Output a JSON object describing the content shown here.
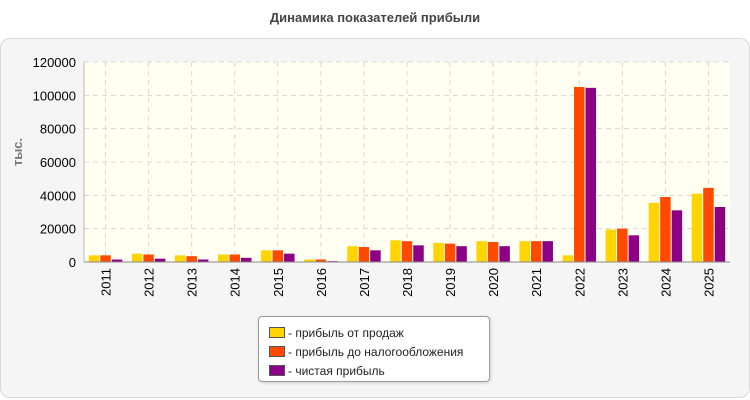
{
  "chart_data": {
    "type": "bar",
    "title": "Динамика показателей прибыли",
    "ylabel": "тыс.",
    "xlabel": "",
    "ylim": [
      0,
      120000
    ],
    "yticks": [
      0,
      20000,
      40000,
      60000,
      80000,
      100000,
      120000
    ],
    "grid": true,
    "legend_position": "bottom-center",
    "categories": [
      "2011",
      "2012",
      "2013",
      "2014",
      "2015",
      "2016",
      "2017",
      "2018",
      "2019",
      "2020",
      "2021",
      "2022",
      "2023",
      "2024",
      "2025"
    ],
    "series": [
      {
        "name": "- прибыль от продаж",
        "color": "#ffd400",
        "values": [
          4000,
          5000,
          4000,
          4500,
          7000,
          1500,
          9500,
          13000,
          11500,
          12500,
          12500,
          4000,
          19500,
          35500,
          41000
        ]
      },
      {
        "name": "- прибыль до налогообложения",
        "color": "#ff4a00",
        "values": [
          4000,
          4500,
          3500,
          4500,
          7000,
          1500,
          9000,
          12500,
          11000,
          12000,
          12500,
          105000,
          20000,
          39000,
          44500
        ]
      },
      {
        "name": "- чистая прибыль",
        "color": "#8b0085",
        "values": [
          1500,
          2000,
          1500,
          2500,
          5000,
          500,
          7000,
          10000,
          9500,
          9500,
          12500,
          104500,
          16000,
          31000,
          33000
        ]
      }
    ]
  }
}
